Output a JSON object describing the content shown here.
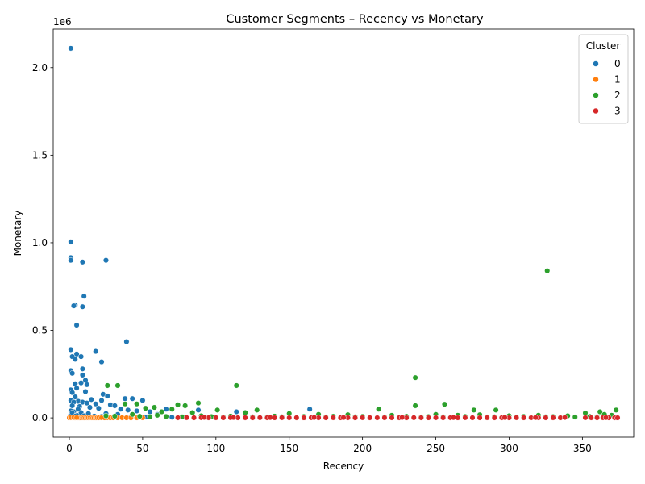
{
  "chart_data": {
    "type": "scatter",
    "title": "Customer Segments – Recency vs Monetary",
    "xlabel": "Recency",
    "ylabel": "Monetary",
    "y_offset_label": "1e6",
    "xlim": [
      -11,
      385
    ],
    "ylim": [
      -110000,
      2220000
    ],
    "x_ticks": [
      0,
      50,
      100,
      150,
      200,
      250,
      300,
      350
    ],
    "y_ticks": [
      0,
      500000,
      1000000,
      1500000,
      2000000
    ],
    "y_tick_labels": [
      "0.0",
      "0.5",
      "1.0",
      "1.5",
      "2.0"
    ],
    "legend": {
      "title": "Cluster",
      "placement": "top-right"
    },
    "series": [
      {
        "name": "0",
        "color": "#1f77b4",
        "points": [
          [
            1,
            2110000
          ],
          [
            1,
            1005000
          ],
          [
            1,
            915000
          ],
          [
            1,
            900000
          ],
          [
            9,
            890000
          ],
          [
            25,
            900000
          ],
          [
            10,
            695000
          ],
          [
            4,
            645000
          ],
          [
            3,
            640000
          ],
          [
            9,
            635000
          ],
          [
            5,
            530000
          ],
          [
            39,
            435000
          ],
          [
            1,
            390000
          ],
          [
            18,
            380000
          ],
          [
            5,
            365000
          ],
          [
            2,
            350000
          ],
          [
            8,
            350000
          ],
          [
            4,
            335000
          ],
          [
            22,
            320000
          ],
          [
            9,
            280000
          ],
          [
            1,
            270000
          ],
          [
            2,
            255000
          ],
          [
            9,
            245000
          ],
          [
            11,
            215000
          ],
          [
            12,
            190000
          ],
          [
            4,
            195000
          ],
          [
            8,
            200000
          ],
          [
            5,
            170000
          ],
          [
            1,
            160000
          ],
          [
            2,
            145000
          ],
          [
            11,
            150000
          ],
          [
            23,
            135000
          ],
          [
            26,
            125000
          ],
          [
            4,
            120000
          ],
          [
            38,
            110000
          ],
          [
            43,
            110000
          ],
          [
            50,
            100000
          ],
          [
            15,
            105000
          ],
          [
            22,
            100000
          ],
          [
            1,
            100000
          ],
          [
            6,
            95000
          ],
          [
            3,
            90000
          ],
          [
            9,
            90000
          ],
          [
            12,
            85000
          ],
          [
            18,
            80000
          ],
          [
            28,
            75000
          ],
          [
            31,
            70000
          ],
          [
            2,
            70000
          ],
          [
            7,
            65000
          ],
          [
            14,
            60000
          ],
          [
            20,
            55000
          ],
          [
            35,
            50000
          ],
          [
            40,
            45000
          ],
          [
            46,
            40000
          ],
          [
            55,
            35000
          ],
          [
            3,
            35000
          ],
          [
            8,
            30000
          ],
          [
            13,
            25000
          ],
          [
            25,
            25000
          ],
          [
            33,
            20000
          ],
          [
            60,
            20000
          ],
          [
            66,
            50000
          ],
          [
            88,
            45000
          ],
          [
            114,
            35000
          ],
          [
            164,
            50000
          ],
          [
            1,
            20000
          ],
          [
            5,
            15000
          ],
          [
            10,
            12000
          ],
          [
            17,
            10000
          ],
          [
            22,
            8000
          ],
          [
            30,
            6000
          ],
          [
            42,
            5000
          ],
          [
            52,
            5000
          ],
          [
            70,
            4000
          ],
          [
            95,
            3000
          ],
          [
            130,
            3000
          ],
          [
            200,
            2000
          ],
          [
            260,
            2000
          ],
          [
            310,
            2000
          ],
          [
            373,
            3000
          ],
          [
            1,
            40000
          ],
          [
            2,
            30000
          ],
          [
            4,
            10000
          ],
          [
            6,
            50000
          ]
        ]
      },
      {
        "name": "1",
        "color": "#ff7f0e",
        "points": [
          [
            0,
            500
          ],
          [
            1,
            800
          ],
          [
            2,
            1200
          ],
          [
            3,
            600
          ],
          [
            4,
            900
          ],
          [
            5,
            1500
          ],
          [
            6,
            700
          ],
          [
            7,
            1000
          ],
          [
            8,
            400
          ],
          [
            9,
            1100
          ],
          [
            10,
            800
          ],
          [
            11,
            600
          ],
          [
            12,
            1300
          ],
          [
            13,
            900
          ],
          [
            14,
            700
          ],
          [
            15,
            1200
          ],
          [
            16,
            500
          ],
          [
            17,
            1000
          ],
          [
            18,
            800
          ],
          [
            19,
            600
          ],
          [
            20,
            900
          ],
          [
            22,
            1100
          ],
          [
            24,
            700
          ],
          [
            26,
            1400
          ],
          [
            28,
            600
          ],
          [
            30,
            900
          ],
          [
            33,
            800
          ],
          [
            36,
            1000
          ],
          [
            39,
            700
          ],
          [
            42,
            500
          ],
          [
            46,
            900
          ],
          [
            50,
            1200
          ],
          [
            1,
            2000
          ],
          [
            3,
            2500
          ],
          [
            5,
            1800
          ]
        ]
      },
      {
        "name": "2",
        "color": "#2ca02c",
        "points": [
          [
            326,
            840000
          ],
          [
            236,
            230000
          ],
          [
            26,
            185000
          ],
          [
            33,
            185000
          ],
          [
            114,
            185000
          ],
          [
            88,
            85000
          ],
          [
            38,
            80000
          ],
          [
            46,
            80000
          ],
          [
            74,
            75000
          ],
          [
            79,
            70000
          ],
          [
            256,
            78000
          ],
          [
            236,
            70000
          ],
          [
            58,
            60000
          ],
          [
            52,
            55000
          ],
          [
            70,
            50000
          ],
          [
            101,
            45000
          ],
          [
            128,
            45000
          ],
          [
            211,
            50000
          ],
          [
            276,
            45000
          ],
          [
            291,
            45000
          ],
          [
            373,
            45000
          ],
          [
            362,
            35000
          ],
          [
            352,
            28000
          ],
          [
            63,
            35000
          ],
          [
            84,
            30000
          ],
          [
            120,
            30000
          ],
          [
            150,
            25000
          ],
          [
            170,
            20000
          ],
          [
            190,
            18000
          ],
          [
            220,
            15000
          ],
          [
            250,
            20000
          ],
          [
            265,
            15000
          ],
          [
            280,
            18000
          ],
          [
            300,
            12000
          ],
          [
            320,
            15000
          ],
          [
            340,
            12000
          ],
          [
            365,
            20000
          ],
          [
            370,
            15000
          ],
          [
            43,
            20000
          ],
          [
            60,
            15000
          ],
          [
            90,
            12000
          ],
          [
            110,
            10000
          ],
          [
            140,
            10000
          ],
          [
            160,
            8000
          ],
          [
            180,
            9000
          ],
          [
            200,
            8000
          ],
          [
            230,
            9000
          ],
          [
            245,
            7000
          ],
          [
            270,
            8000
          ],
          [
            290,
            6000
          ],
          [
            310,
            8000
          ],
          [
            330,
            7000
          ],
          [
            355,
            8000
          ],
          [
            25,
            12000
          ],
          [
            31,
            10000
          ],
          [
            48,
            9000
          ],
          [
            55,
            7000
          ],
          [
            66,
            8000
          ],
          [
            77,
            6000
          ],
          [
            97,
            7000
          ],
          [
            105,
            5000
          ],
          [
            125,
            6000
          ],
          [
            135,
            5000
          ],
          [
            145,
            6000
          ],
          [
            175,
            5000
          ],
          [
            195,
            6000
          ],
          [
            215,
            5000
          ],
          [
            240,
            5000
          ],
          [
            255,
            6000
          ],
          [
            285,
            5000
          ],
          [
            305,
            5000
          ],
          [
            325,
            6000
          ],
          [
            345,
            5000
          ],
          [
            360,
            6000
          ]
        ]
      },
      {
        "name": "3",
        "color": "#d62728",
        "points": [
          [
            74,
            1000
          ],
          [
            80,
            1500
          ],
          [
            85,
            800
          ],
          [
            90,
            1200
          ],
          [
            95,
            900
          ],
          [
            100,
            1100
          ],
          [
            105,
            700
          ],
          [
            110,
            1300
          ],
          [
            115,
            800
          ],
          [
            120,
            1000
          ],
          [
            125,
            600
          ],
          [
            130,
            1200
          ],
          [
            135,
            900
          ],
          [
            140,
            700
          ],
          [
            145,
            1100
          ],
          [
            150,
            800
          ],
          [
            155,
            1000
          ],
          [
            160,
            600
          ],
          [
            165,
            1200
          ],
          [
            170,
            900
          ],
          [
            175,
            700
          ],
          [
            180,
            1100
          ],
          [
            185,
            800
          ],
          [
            190,
            1000
          ],
          [
            195,
            600
          ],
          [
            200,
            1200
          ],
          [
            205,
            900
          ],
          [
            210,
            700
          ],
          [
            215,
            1100
          ],
          [
            220,
            800
          ],
          [
            225,
            1000
          ],
          [
            230,
            600
          ],
          [
            235,
            1200
          ],
          [
            240,
            900
          ],
          [
            245,
            700
          ],
          [
            250,
            1100
          ],
          [
            255,
            800
          ],
          [
            260,
            1000
          ],
          [
            265,
            600
          ],
          [
            270,
            1200
          ],
          [
            275,
            900
          ],
          [
            280,
            700
          ],
          [
            285,
            1100
          ],
          [
            290,
            800
          ],
          [
            295,
            1000
          ],
          [
            300,
            600
          ],
          [
            305,
            1200
          ],
          [
            310,
            900
          ],
          [
            315,
            700
          ],
          [
            320,
            1100
          ],
          [
            325,
            800
          ],
          [
            330,
            1000
          ],
          [
            335,
            600
          ],
          [
            352,
            1200
          ],
          [
            356,
            900
          ],
          [
            360,
            700
          ],
          [
            364,
            1100
          ],
          [
            368,
            800
          ],
          [
            372,
            1000
          ],
          [
            374,
            600
          ],
          [
            92,
            3000
          ],
          [
            112,
            2500
          ],
          [
            137,
            2000
          ],
          [
            167,
            2500
          ],
          [
            187,
            2000
          ],
          [
            227,
            2500
          ],
          [
            262,
            2000
          ],
          [
            297,
            2500
          ],
          [
            318,
            2000
          ],
          [
            338,
            2500
          ],
          [
            366,
            2000
          ]
        ]
      }
    ]
  }
}
